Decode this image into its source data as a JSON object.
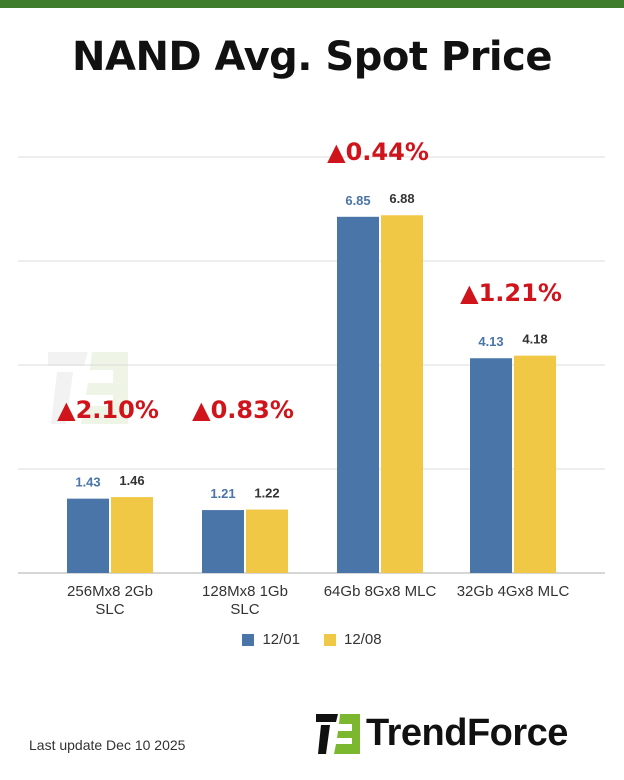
{
  "title": "NAND Avg. Spot Price",
  "last_update": "Last update Dec 10 2025",
  "brand": "TrendForce",
  "watermark": "TrendForce",
  "colors": {
    "series1": "#4a75a8",
    "series2": "#f0c846",
    "change": "#d0141b",
    "topbar": "#3f7d2c",
    "logo_green": "#7cb82f"
  },
  "chart_data": {
    "type": "bar",
    "title": "NAND Avg. Spot Price",
    "categories": [
      [
        "256Mx8 2Gb",
        "SLC"
      ],
      [
        "128Mx8 1Gb",
        "SLC"
      ],
      [
        "64Gb 8Gx8 MLC"
      ],
      [
        "32Gb 4Gx8 MLC"
      ]
    ],
    "series": [
      {
        "name": "12/01",
        "values": [
          1.43,
          1.21,
          6.85,
          4.13
        ],
        "labels": [
          "1.43",
          "1.21",
          "6.85",
          "4.13"
        ]
      },
      {
        "name": "12/08",
        "values": [
          1.46,
          1.22,
          6.88,
          4.18
        ],
        "labels": [
          "1.46",
          "1.22",
          "6.88",
          "4.18"
        ]
      }
    ],
    "changes": [
      "▲2.10%",
      "▲0.83%",
      "▲0.44%",
      "▲1.21%"
    ],
    "ylim": [
      0,
      8
    ],
    "gridlines": [
      2,
      4,
      6,
      8
    ],
    "grid": true,
    "legend": "bottom",
    "xlabel": "",
    "ylabel": ""
  }
}
